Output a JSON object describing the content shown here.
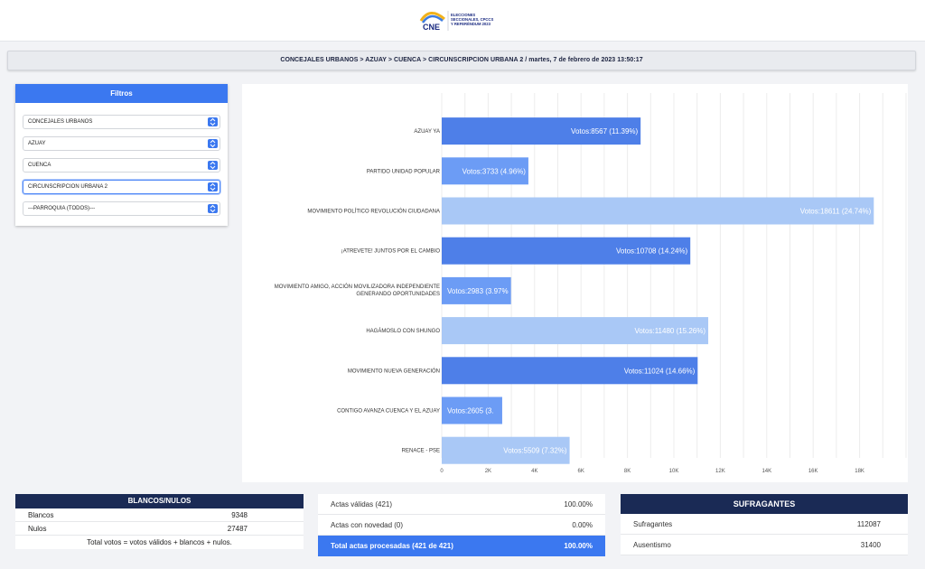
{
  "header": {
    "logo_text": "CNE",
    "logo_subtitle": "ELECCIONES SECCIONALES, CPCCS Y REFERÉNDUM 2023"
  },
  "breadcrumb": "CONCEJALES URBANOS > AZUAY > CUENCA > CIRCUNSCRIPCION URBANA 2 / martes, 7 de febrero de 2023 13:50:17",
  "filters": {
    "title": "Filtros",
    "selects": [
      {
        "value": "CONCEJALES URBANOS"
      },
      {
        "value": "AZUAY"
      },
      {
        "value": "CUENCA"
      },
      {
        "value": "CIRCUNSCRIPCION URBANA 2"
      },
      {
        "value": "---PARROQUIA (TODOS)---"
      }
    ]
  },
  "colors": {
    "dark_bar": "#4e7fe8",
    "mid_bar": "#6c9cf5",
    "light_bar": "#a9c8f6",
    "accent": "#3b78f0",
    "navy": "#1a2a55"
  },
  "chart_data": {
    "type": "bar",
    "orientation": "horizontal",
    "categories": [
      "AZUAY YA",
      "PARTIDO UNIDAD POPULAR",
      "MOVIMIENTO POLÍTICO REVOLUCIÓN CIUDADANA",
      "¡ATREVETE! JUNTOS POR EL CAMBIO",
      "MOVIMIENTO AMIGO, ACCIÓN MOVILIZADORA INDEPENDIENTE GENERANDO OPORTUNIDADES",
      "HAGÁMOSLO CON SHUNGO",
      "MOVIMIENTO NUEVA GENERACIÓN",
      "CONTIGO AVANZA CUENCA Y EL AZUAY",
      "RENACE - PSE"
    ],
    "values": [
      8567,
      3733,
      18611,
      10708,
      2983,
      11480,
      11024,
      2605,
      5509
    ],
    "value_labels": [
      "Votos:8567 (11.39%)",
      "Votos:3733 (4.96%)",
      "Votos:18611 (24.74%)",
      "Votos:10708 (14.24%)",
      "Votos:2983 (3.97%",
      "Votos:11480 (15.26%)",
      "Votos:11024 (14.66%)",
      "Votos:2605 (3.",
      "Votos:5509 (7.32%)"
    ],
    "bar_colors": [
      "#4e7fe8",
      "#6c9cf5",
      "#a9c8f6",
      "#4e7fe8",
      "#6c9cf5",
      "#a9c8f6",
      "#4e7fe8",
      "#6c9cf5",
      "#a9c8f6"
    ],
    "xlim": [
      0,
      20000
    ],
    "xticks": [
      0,
      2000,
      4000,
      6000,
      8000,
      10000,
      12000,
      14000,
      16000,
      18000
    ],
    "xtick_labels": [
      "0",
      "2K",
      "4K",
      "6K",
      "8K",
      "10K",
      "12K",
      "14K",
      "16K",
      "18K"
    ],
    "grid": true
  },
  "blancos_nulos": {
    "title": "BLANCOS/NULOS",
    "rows": [
      {
        "label": "Blancos",
        "value": "9348"
      },
      {
        "label": "Nulos",
        "value": "27487"
      }
    ],
    "note": "Total votos = votos válidos + blancos + nulos."
  },
  "actas": {
    "rows": [
      {
        "label": "Actas válidas (421)",
        "value": "100.00%"
      },
      {
        "label": "Actas con novedad (0)",
        "value": "0.00%"
      }
    ],
    "total": {
      "label": "Total actas procesadas (421 de 421)",
      "value": "100.00%"
    }
  },
  "sufragantes": {
    "title": "SUFRAGANTES",
    "rows": [
      {
        "label": "Sufragantes",
        "value": "112087"
      },
      {
        "label": "Ausentismo",
        "value": "31400"
      }
    ]
  }
}
